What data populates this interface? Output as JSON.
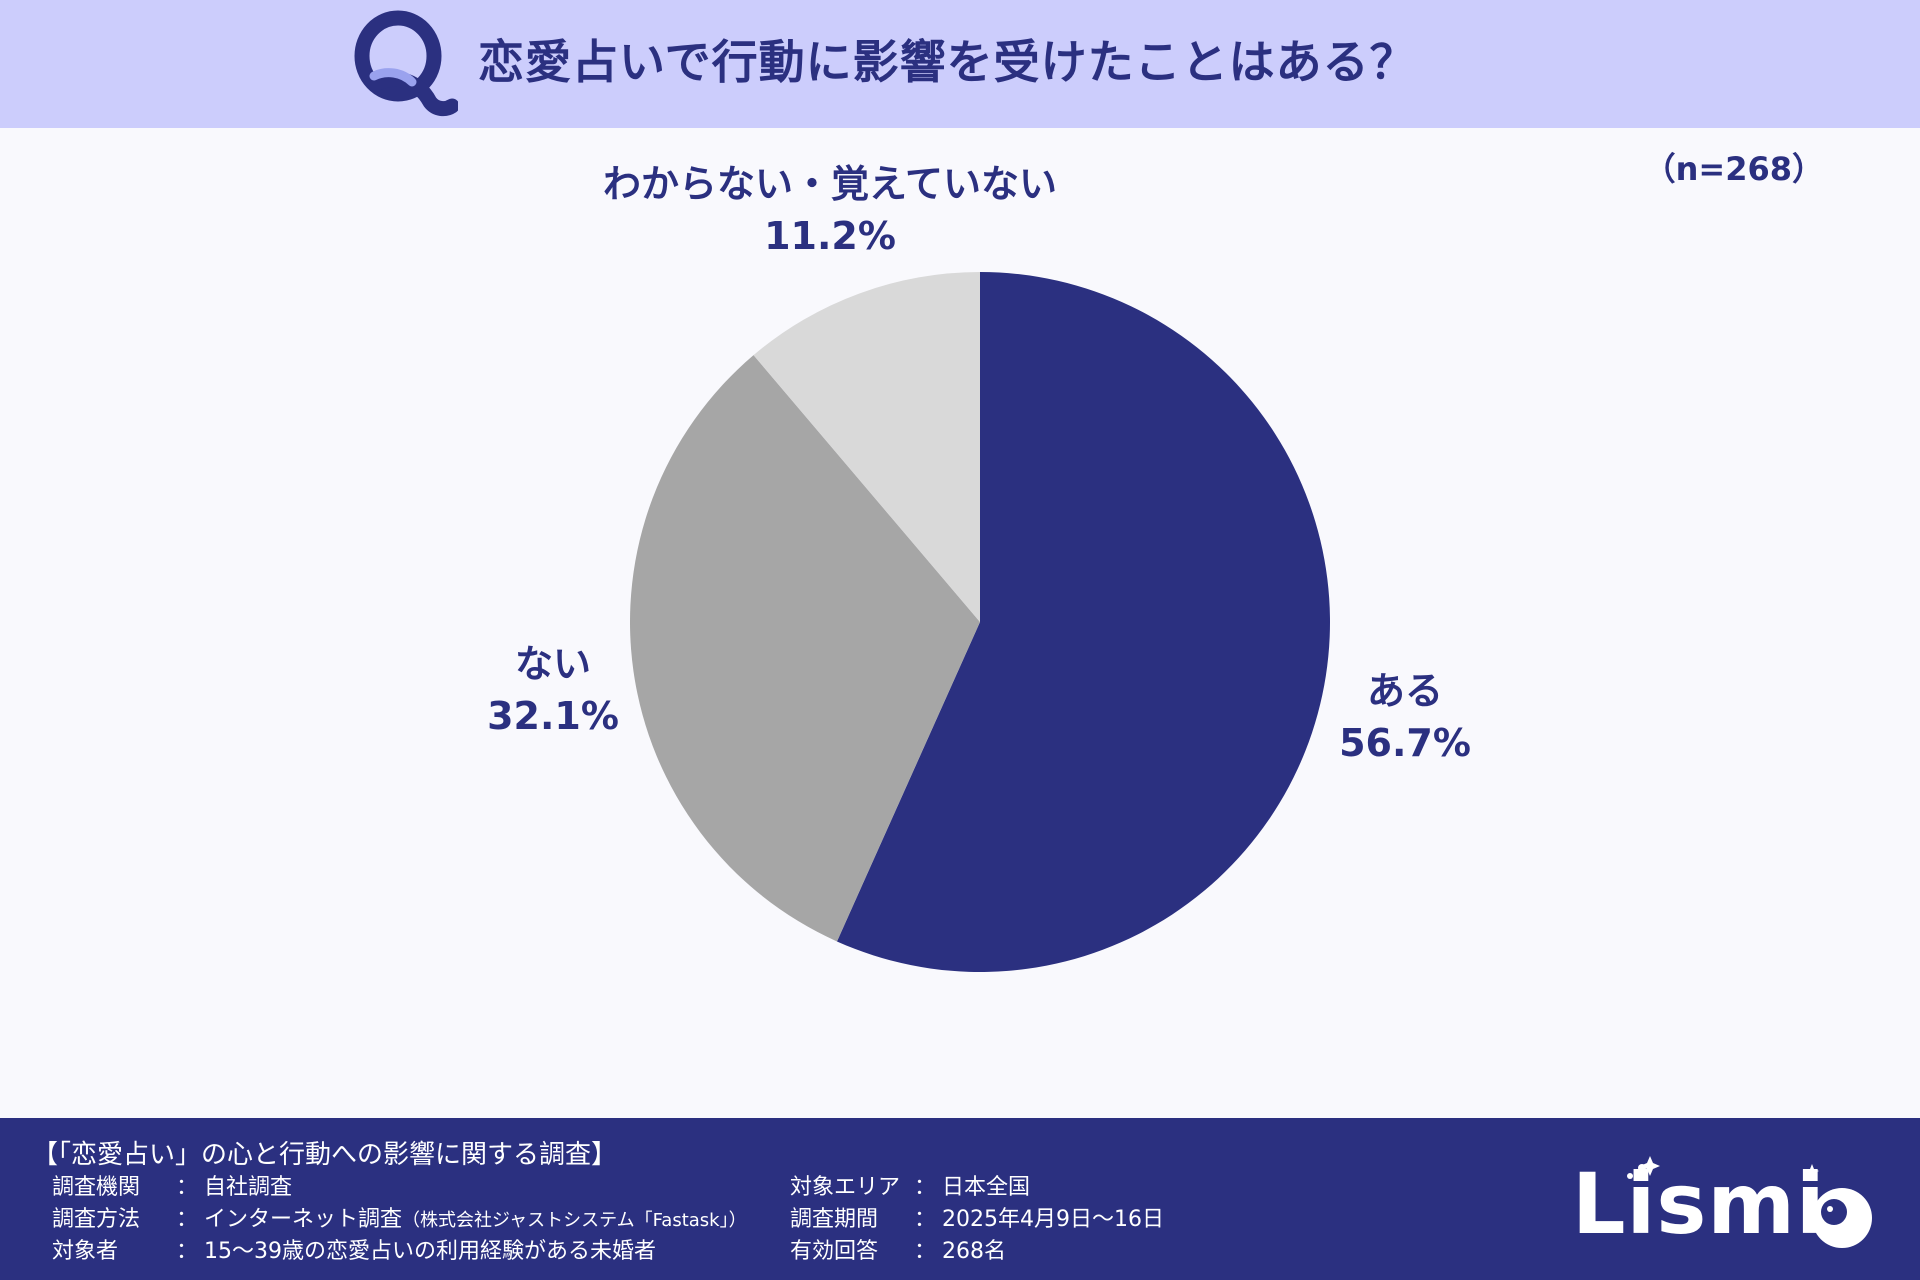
{
  "header": {
    "q_mark": "Q",
    "title": "恋愛占いで行動に影響を受けたことはある？"
  },
  "sample_size": "（n=268）",
  "chart_data": {
    "type": "pie",
    "slices": [
      {
        "label": "ある",
        "value": 56.7,
        "display": "56.7%",
        "color": "#2b3080"
      },
      {
        "label": "ない",
        "value": 32.1,
        "display": "32.1%",
        "color": "#a6a6a6"
      },
      {
        "label": "わからない・覚えていない",
        "value": 11.2,
        "display": "11.2%",
        "color": "#d9d9d9"
      }
    ],
    "start": "12 o'clock",
    "direction": "clockwise"
  },
  "footer": {
    "survey_title": "【「恋愛占い」の心と行動への影響に関する調査】",
    "left": [
      {
        "key": "調査機関",
        "value": "自社調査",
        "note": ""
      },
      {
        "key": "調査方法",
        "value": "インターネット調査",
        "note": "（株式会社ジャストシステム「Fastask」）"
      },
      {
        "key": "対象者",
        "value": "15〜39歳の恋愛占いの利用経験がある未婚者",
        "note": ""
      }
    ],
    "right": [
      {
        "key": "対象エリア",
        "value": "日本全国"
      },
      {
        "key": "調査期間",
        "value": "2025年4月9日〜16日"
      },
      {
        "key": "有効回答",
        "value": "268名"
      }
    ],
    "separator": "：",
    "brand": "Lismi"
  }
}
